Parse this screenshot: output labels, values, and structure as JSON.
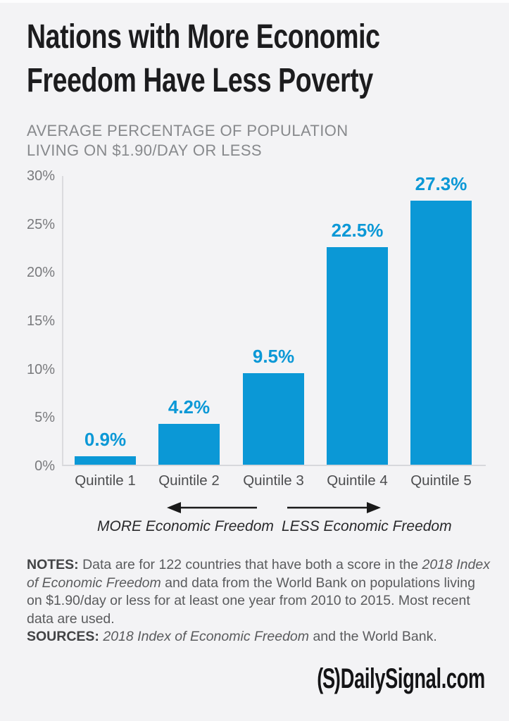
{
  "header": {
    "title_lines": [
      "Nations with More Economic",
      "Freedom Have Less Poverty"
    ],
    "subtitle_lines": [
      "AVERAGE PERCENTAGE OF POPULATION",
      "LIVING ON $1.90/DAY OR LESS"
    ]
  },
  "chart_data": {
    "type": "bar",
    "title": "AVERAGE PERCENTAGE OF POPULATION LIVING ON $1.90/DAY OR LESS",
    "categories": [
      "Quintile 1",
      "Quintile 2",
      "Quintile 3",
      "Quintile 4",
      "Quintile 5"
    ],
    "values": [
      0.9,
      4.2,
      9.5,
      22.5,
      27.3
    ],
    "value_labels": [
      "0.9%",
      "4.2%",
      "9.5%",
      "22.5%",
      "27.3%"
    ],
    "xlabel": "",
    "ylabel": "",
    "ylim": [
      0,
      30
    ],
    "yticks": [
      0,
      5,
      10,
      15,
      20,
      25,
      30
    ],
    "ytick_labels": [
      "0%",
      "5%",
      "10%",
      "15%",
      "20%",
      "25%",
      "30%"
    ],
    "bar_color": "#0b98d6",
    "grid": false,
    "legend": null
  },
  "annotations": {
    "more_label": "MORE Economic Freedom",
    "less_label": "LESS Economic Freedom"
  },
  "notes": {
    "paragraphs": [
      [
        {
          "t": "NOTES:",
          "b": true
        },
        {
          "t": " Data are for 122 countries that have both a score in the "
        },
        {
          "t": "2018 Index of Economic Freedom",
          "i": true
        },
        {
          "t": " and data from the World Bank on populations living on $1.90/day or less for at least one year from 2010 to 2015. Most recent data are used."
        }
      ],
      [
        {
          "t": "SOURCES:",
          "b": true
        },
        {
          "t": " "
        },
        {
          "t": "2018 Index of Economic Freedom",
          "i": true
        },
        {
          "t": " and the World Bank."
        }
      ]
    ]
  },
  "footer": {
    "logo_mark": "(S)",
    "logo_text": "DailySignal.com"
  },
  "colors": {
    "background": "#f3f3f5",
    "bar_blue": "#0b98d6",
    "title_black": "#1c1c1e",
    "axis_gray": "#d7d8db"
  }
}
